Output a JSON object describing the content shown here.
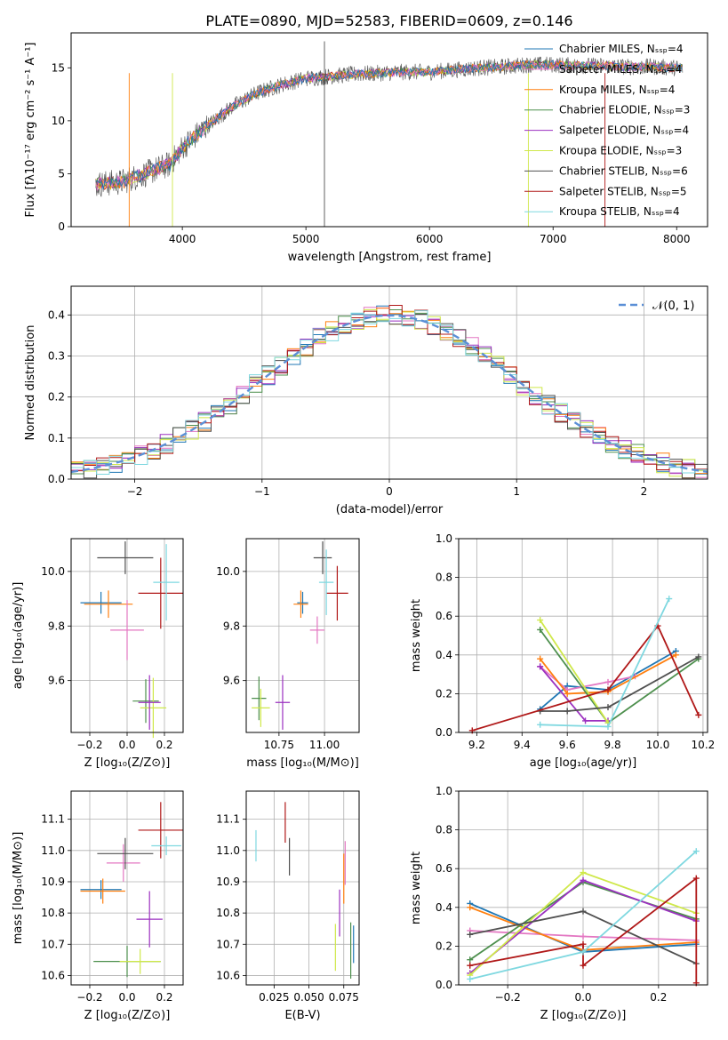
{
  "figure_title": "PLATE=0890, MJD=52583, FIBERID=0609, z=0.146",
  "colors": {
    "chabrier_miles": "#1f77b4",
    "salpeter_miles": "#e377c2",
    "kroupa_miles": "#ff7f0e",
    "chabrier_elodie": "#4d8f4d",
    "salpeter_elodie": "#9b30c0",
    "kroupa_elodie": "#cfe84a",
    "chabrier_stelib": "#505050",
    "salpeter_stelib": "#b01818",
    "kroupa_stelib": "#7fd8e0",
    "gauss": "#5b8fd6"
  },
  "chart_data": [
    {
      "id": "spectrum",
      "type": "line",
      "xlabel": "wavelength [Angstrom, rest frame]",
      "ylabel": "Flux [fλ10⁻¹⁷ erg cm⁻² s⁻¹ A⁻¹]",
      "xlim": [
        3100,
        8250
      ],
      "ylim": [
        0,
        18.3
      ],
      "xticks": [
        4000,
        5000,
        6000,
        7000,
        8000
      ],
      "yticks": [
        0,
        5,
        10,
        15
      ],
      "grid": false,
      "legend_position": "top-right",
      "legend": [
        "Chabrier MILES, Nₛₛₚ=4",
        "Salpeter MILES, Nₛₛₚ=4",
        "Kroupa MILES, Nₛₛₚ=4",
        "Chabrier ELODIE, Nₛₛₚ=3",
        "Salpeter ELODIE, Nₛₛₚ=4",
        "Kroupa ELODIE, Nₛₛₚ=3",
        "Chabrier STELIB, Nₛₛₚ=6",
        "Salpeter STELIB, Nₛₛₚ=5",
        "Kroupa STELIB, Nₛₛₚ=4"
      ],
      "continuum": {
        "x": [
          3300,
          3500,
          3700,
          3900,
          4000,
          4200,
          4400,
          4600,
          4800,
          5000,
          5200,
          5400,
          5600,
          5800,
          6000,
          6200,
          6400,
          6600,
          6800,
          7000,
          7200,
          7400,
          7600,
          7800,
          8000
        ],
        "y": [
          4.0,
          4.2,
          5.0,
          5.9,
          7.5,
          9.5,
          11.3,
          12.6,
          13.4,
          14.0,
          14.2,
          14.4,
          14.5,
          14.6,
          14.6,
          14.8,
          15.0,
          15.1,
          15.3,
          15.3,
          15.2,
          15.2,
          15.1,
          15.1,
          15.0
        ]
      },
      "wavelength_range": [
        3300,
        8050
      ]
    },
    {
      "id": "residuals",
      "type": "line",
      "xlabel": "(data-model)/error",
      "ylabel": "Normed distribution",
      "xlim": [
        -2.5,
        2.5
      ],
      "ylim": [
        0,
        0.47
      ],
      "xticks": [
        -2,
        -1,
        0,
        1,
        2
      ],
      "yticks": [
        0.0,
        0.1,
        0.2,
        0.3,
        0.4
      ],
      "grid": true,
      "legend_position": "top-right",
      "legend": [
        "𝒩(0, 1)"
      ],
      "gaussian": {
        "mean": 0,
        "sigma": 1
      }
    },
    {
      "id": "age_vs_Z",
      "type": "scatter",
      "xlabel": "Z [log₁₀(Z/Z⊙)]",
      "ylabel": "age  [log₁₀(age/yr)]",
      "xlim": [
        -0.3,
        0.3
      ],
      "ylim": [
        9.41,
        10.12
      ],
      "xticks": [
        -0.2,
        0.0,
        0.2
      ],
      "yticks": [
        9.6,
        9.8,
        10.0
      ],
      "grid": true,
      "points": [
        {
          "series": "Chabrier MILES",
          "x": -0.14,
          "y": 9.885,
          "xerr": 0.11,
          "yerr": 0.04
        },
        {
          "series": "Kroupa MILES",
          "x": -0.1,
          "y": 9.88,
          "xerr": 0.13,
          "yerr": 0.05
        },
        {
          "series": "Salpeter MILES",
          "x": 0.0,
          "y": 9.785,
          "xerr": 0.09,
          "yerr": 0.11
        },
        {
          "series": "Chabrier ELODIE",
          "x": 0.1,
          "y": 9.525,
          "xerr": 0.07,
          "yerr": 0.08
        },
        {
          "series": "Kroupa ELODIE",
          "x": 0.14,
          "y": 9.5,
          "xerr": 0.07,
          "yerr": 0.11
        },
        {
          "series": "Salpeter ELODIE",
          "x": 0.12,
          "y": 9.52,
          "xerr": 0.06,
          "yerr": 0.1
        },
        {
          "series": "Chabrier STELIB",
          "x": -0.01,
          "y": 10.05,
          "xerr": 0.15,
          "yerr": 0.06
        },
        {
          "series": "Salpeter STELIB",
          "x": 0.18,
          "y": 9.92,
          "xerr": 0.12,
          "yerr": 0.13
        },
        {
          "series": "Kroupa STELIB",
          "x": 0.21,
          "y": 9.96,
          "xerr": 0.07,
          "yerr": 0.14
        }
      ]
    },
    {
      "id": "age_vs_mass",
      "type": "scatter",
      "xlabel": "mass [log₁₀(M/M⊙)]",
      "ylabel": "",
      "xlim": [
        10.57,
        11.19
      ],
      "ylim": [
        9.41,
        10.12
      ],
      "xticks": [
        10.75,
        11.0
      ],
      "xticklabels": [
        "10.75",
        "11.00"
      ],
      "yticks": [
        9.6,
        9.8,
        10.0
      ],
      "grid": true,
      "points": [
        {
          "series": "Chabrier MILES",
          "x": 10.88,
          "y": 9.885,
          "xerr": 0.03,
          "yerr": 0.04
        },
        {
          "series": "Kroupa MILES",
          "x": 10.87,
          "y": 9.88,
          "xerr": 0.04,
          "yerr": 0.05
        },
        {
          "series": "Salpeter MILES",
          "x": 10.96,
          "y": 9.785,
          "xerr": 0.04,
          "yerr": 0.05
        },
        {
          "series": "Chabrier ELODIE",
          "x": 10.64,
          "y": 9.535,
          "xerr": 0.04,
          "yerr": 0.08
        },
        {
          "series": "Kroupa ELODIE",
          "x": 10.65,
          "y": 9.5,
          "xerr": 0.05,
          "yerr": 0.07
        },
        {
          "series": "Salpeter ELODIE",
          "x": 10.77,
          "y": 9.52,
          "xerr": 0.04,
          "yerr": 0.1
        },
        {
          "series": "Chabrier STELIB",
          "x": 10.99,
          "y": 10.05,
          "xerr": 0.05,
          "yerr": 0.06
        },
        {
          "series": "Salpeter STELIB",
          "x": 11.07,
          "y": 9.92,
          "xerr": 0.06,
          "yerr": 0.1
        },
        {
          "series": "Kroupa STELIB",
          "x": 11.01,
          "y": 9.96,
          "xerr": 0.04,
          "yerr": 0.12
        }
      ]
    },
    {
      "id": "massweight_vs_age",
      "type": "line",
      "xlabel": "age  [log₁₀(age/yr)]",
      "ylabel": "mass weight",
      "xlim": [
        9.12,
        10.22
      ],
      "ylim": [
        0,
        1
      ],
      "xticks": [
        9.2,
        9.4,
        9.6,
        9.8,
        10.0,
        10.2
      ],
      "yticks": [
        0.0,
        0.2,
        0.4,
        0.6,
        0.8,
        1.0
      ],
      "grid": true,
      "series": [
        {
          "name": "Chabrier MILES",
          "x": [
            9.48,
            9.6,
            9.78,
            10.08
          ],
          "y": [
            0.12,
            0.24,
            0.22,
            0.42
          ]
        },
        {
          "name": "Salpeter MILES",
          "x": [
            9.48,
            9.6,
            9.78,
            9.9
          ],
          "y": [
            0.34,
            0.22,
            0.26,
            0.29
          ]
        },
        {
          "name": "Kroupa MILES",
          "x": [
            9.48,
            9.6,
            9.78,
            10.08
          ],
          "y": [
            0.38,
            0.2,
            0.21,
            0.4
          ]
        },
        {
          "name": "Chabrier ELODIE",
          "x": [
            9.48,
            9.78,
            10.18
          ],
          "y": [
            0.53,
            0.05,
            0.38
          ]
        },
        {
          "name": "Salpeter ELODIE",
          "x": [
            9.48,
            9.68,
            9.78
          ],
          "y": [
            0.34,
            0.06,
            0.06
          ]
        },
        {
          "name": "Kroupa ELODIE",
          "x": [
            9.48,
            9.78
          ],
          "y": [
            0.58,
            0.05
          ]
        },
        {
          "name": "Chabrier STELIB",
          "x": [
            9.48,
            9.6,
            9.78,
            10.18
          ],
          "y": [
            0.11,
            0.11,
            0.13,
            0.39
          ]
        },
        {
          "name": "Salpeter STELIB",
          "x": [
            9.18,
            9.78,
            10.0,
            10.18
          ],
          "y": [
            0.01,
            0.22,
            0.55,
            0.09
          ]
        },
        {
          "name": "Kroupa STELIB",
          "x": [
            9.48,
            9.78,
            10.05
          ],
          "y": [
            0.04,
            0.03,
            0.69
          ]
        }
      ]
    },
    {
      "id": "mass_vs_Z",
      "type": "scatter",
      "xlabel": "Z [log₁₀(Z/Z⊙)]",
      "ylabel": "mass [log₁₀(M/M⊙)]",
      "xlim": [
        -0.3,
        0.3
      ],
      "ylim": [
        10.57,
        11.19
      ],
      "xticks": [
        -0.2,
        0.0,
        0.2
      ],
      "yticks": [
        10.6,
        10.7,
        10.8,
        10.9,
        11.0,
        11.1
      ],
      "grid": true,
      "points": [
        {
          "series": "Chabrier MILES",
          "x": -0.14,
          "y": 10.875,
          "xerr": 0.11,
          "yerr": 0.03
        },
        {
          "series": "Kroupa MILES",
          "x": -0.13,
          "y": 10.87,
          "xerr": 0.12,
          "yerr": 0.04
        },
        {
          "series": "Salpeter MILES",
          "x": -0.02,
          "y": 10.96,
          "xerr": 0.09,
          "yerr": 0.06
        },
        {
          "series": "Chabrier ELODIE",
          "x": 0.0,
          "y": 10.645,
          "xerr": 0.18,
          "yerr": 0.05
        },
        {
          "series": "Kroupa ELODIE",
          "x": 0.07,
          "y": 10.645,
          "xerr": 0.11,
          "yerr": 0.04
        },
        {
          "series": "Salpeter ELODIE",
          "x": 0.12,
          "y": 10.78,
          "xerr": 0.07,
          "yerr": 0.09
        },
        {
          "series": "Chabrier STELIB",
          "x": -0.01,
          "y": 10.99,
          "xerr": 0.15,
          "yerr": 0.05
        },
        {
          "series": "Salpeter STELIB",
          "x": 0.18,
          "y": 11.065,
          "xerr": 0.12,
          "yerr": 0.09
        },
        {
          "series": "Kroupa STELIB",
          "x": 0.21,
          "y": 11.015,
          "xerr": 0.08,
          "yerr": 0.03
        }
      ]
    },
    {
      "id": "mass_vs_ebv",
      "type": "scatter",
      "xlabel": "E(B-V)",
      "ylabel": "",
      "xlim": [
        0.005,
        0.086
      ],
      "ylim": [
        10.57,
        11.19
      ],
      "xticks": [
        0.025,
        0.05,
        0.075
      ],
      "xticklabels": [
        "0.025",
        "0.050",
        "0.075"
      ],
      "yticks": [
        10.6,
        10.7,
        10.8,
        10.9,
        11.0,
        11.1
      ],
      "grid": true,
      "points": [
        {
          "series": "Kroupa STELIB",
          "x": 0.012,
          "y": 11.015,
          "xerr": 0,
          "yerr": 0.05
        },
        {
          "series": "Salpeter STELIB",
          "x": 0.033,
          "y": 11.09,
          "xerr": 0,
          "yerr": 0.065
        },
        {
          "series": "Chabrier STELIB",
          "x": 0.036,
          "y": 10.98,
          "xerr": 0,
          "yerr": 0.06
        },
        {
          "series": "Kroupa ELODIE",
          "x": 0.069,
          "y": 10.69,
          "xerr": 0,
          "yerr": 0.075
        },
        {
          "series": "Salpeter ELODIE",
          "x": 0.072,
          "y": 10.8,
          "xerr": 0,
          "yerr": 0.075
        },
        {
          "series": "Kroupa MILES",
          "x": 0.075,
          "y": 10.91,
          "xerr": 0,
          "yerr": 0.08
        },
        {
          "series": "Salpeter MILES",
          "x": 0.076,
          "y": 10.96,
          "xerr": 0,
          "yerr": 0.07
        },
        {
          "series": "Chabrier ELODIE",
          "x": 0.08,
          "y": 10.68,
          "xerr": 0,
          "yerr": 0.09
        },
        {
          "series": "Chabrier MILES",
          "x": 0.082,
          "y": 10.7,
          "xerr": 0,
          "yerr": 0.06
        }
      ]
    },
    {
      "id": "massweight_vs_Z",
      "type": "line",
      "xlabel": "Z [log₁₀(Z/Z⊙)]",
      "ylabel": "mass weight",
      "xlim": [
        -0.33,
        0.33
      ],
      "ylim": [
        0,
        1
      ],
      "xticks": [
        -0.2,
        0.0,
        0.2
      ],
      "yticks": [
        0.0,
        0.2,
        0.4,
        0.6,
        0.8,
        1.0
      ],
      "grid": true,
      "series": [
        {
          "name": "Chabrier MILES",
          "x": [
            -0.3,
            0.0,
            0.3
          ],
          "y": [
            0.42,
            0.17,
            0.21
          ]
        },
        {
          "name": "Salpeter MILES",
          "x": [
            -0.3,
            0.0,
            0.3
          ],
          "y": [
            0.28,
            0.25,
            0.23
          ]
        },
        {
          "name": "Kroupa MILES",
          "x": [
            -0.3,
            0.0,
            0.3
          ],
          "y": [
            0.4,
            0.18,
            0.22
          ]
        },
        {
          "name": "Chabrier ELODIE",
          "x": [
            -0.3,
            0.0,
            0.3
          ],
          "y": [
            0.13,
            0.53,
            0.34
          ]
        },
        {
          "name": "Salpeter ELODIE",
          "x": [
            -0.3,
            0.0,
            0.3
          ],
          "y": [
            0.06,
            0.54,
            0.33
          ]
        },
        {
          "name": "Kroupa ELODIE",
          "x": [
            -0.3,
            0.0,
            0.3
          ],
          "y": [
            0.05,
            0.58,
            0.37
          ]
        },
        {
          "name": "Chabrier STELIB",
          "x": [
            -0.3,
            0.0,
            0.3
          ],
          "y": [
            0.26,
            0.38,
            0.11
          ]
        },
        {
          "name": "Salpeter STELIB",
          "x": [
            -0.3,
            0.0,
            0.0,
            0.3,
            0.3
          ],
          "y": [
            0.1,
            0.21,
            0.1,
            0.55,
            0.01
          ]
        },
        {
          "name": "Kroupa STELIB",
          "x": [
            -0.3,
            0.0,
            0.3
          ],
          "y": [
            0.03,
            0.17,
            0.69
          ]
        }
      ]
    }
  ]
}
